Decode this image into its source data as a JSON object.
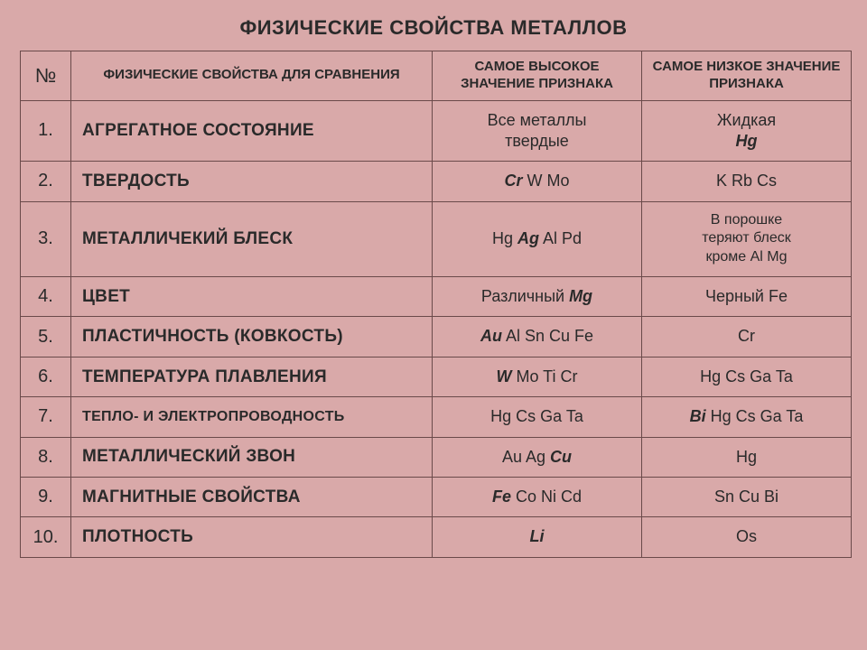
{
  "title": "ФИЗИЧЕСКИЕ СВОЙСТВА МЕТАЛЛОВ",
  "headers": {
    "num": "№",
    "prop": "ФИЗИЧЕСКИЕ СВОЙСТВА ДЛЯ СРАВНЕНИЯ",
    "high": "САМОЕ ВЫСОКОЕ ЗНАЧЕНИЕ ПРИЗНАКА",
    "low": "САМОЕ НИЗКОЕ ЗНАЧЕНИЕ ПРИЗНАКА"
  },
  "rows": [
    {
      "num": "1.",
      "prop": "АГРЕГАТНОЕ СОСТОЯНИЕ"
    },
    {
      "num": "2.",
      "prop": "ТВЕРДОСТЬ"
    },
    {
      "num": "3.",
      "prop": "МЕТАЛЛИЧЕКИЙ БЛЕСК"
    },
    {
      "num": "4.",
      "prop": "ЦВЕТ"
    },
    {
      "num": "5.",
      "prop": "ПЛАСТИЧНОСТЬ (КОВКОСТЬ)"
    },
    {
      "num": "6.",
      "prop": "ТЕМПЕРАТУРА ПЛАВЛЕНИЯ"
    },
    {
      "num": "7.",
      "prop": "ТЕПЛО- И ЭЛЕКТРОПРОВОДНОСТЬ",
      "prop_small": true
    },
    {
      "num": "8.",
      "prop": "МЕТАЛЛИЧЕСКИЙ ЗВОН"
    },
    {
      "num": "9.",
      "prop": "МАГНИТНЫЕ СВОЙСТВА"
    },
    {
      "num": "10.",
      "prop": "ПЛОТНОСТЬ"
    }
  ],
  "values": {
    "r1_high_line1": "Все металлы",
    "r1_high_line2": "твердые",
    "r1_low_line1": "Жидкая",
    "r1_low_hg": "Hg",
    "r2_high_pre": "Cr",
    "r2_high_post": " W Mo",
    "r2_low": "K Rb Cs",
    "r3_high_pre": "Hg ",
    "r3_high_mid": "Ag",
    "r3_high_post": " Al Pd",
    "r3_low_l1": "В порошке",
    "r3_low_l2": "теряют блеск",
    "r3_low_l3": "кроме Al Mg",
    "r4_high_pre": "Различный ",
    "r4_high_mg": "Mg",
    "r4_low": "Черный  Fe",
    "r5_high_pre": "Au",
    "r5_high_post": " Al Sn Cu Fe",
    "r5_low": "Cr",
    "r6_high_pre": "W",
    "r6_high_post": " Mo Ti Cr",
    "r6_low": "Hg Cs Ga Ta",
    "r7_high": "Hg Cs Ga Ta",
    "r7_low_pre": "Bi",
    "r7_low_post": " Hg Cs Ga Ta",
    "r8_high_pre": "Au Ag ",
    "r8_high_cu": "Cu",
    "r8_low": "Hg",
    "r9_high_pre": "Fe",
    "r9_high_post": " Co Ni Cd",
    "r9_low": "Sn Cu Bi",
    "r10_high": "Li",
    "r10_low": "Os"
  },
  "colors": {
    "bg": "#d9a9a9",
    "border": "#6a4a4a",
    "text": "#2a2a2a"
  }
}
